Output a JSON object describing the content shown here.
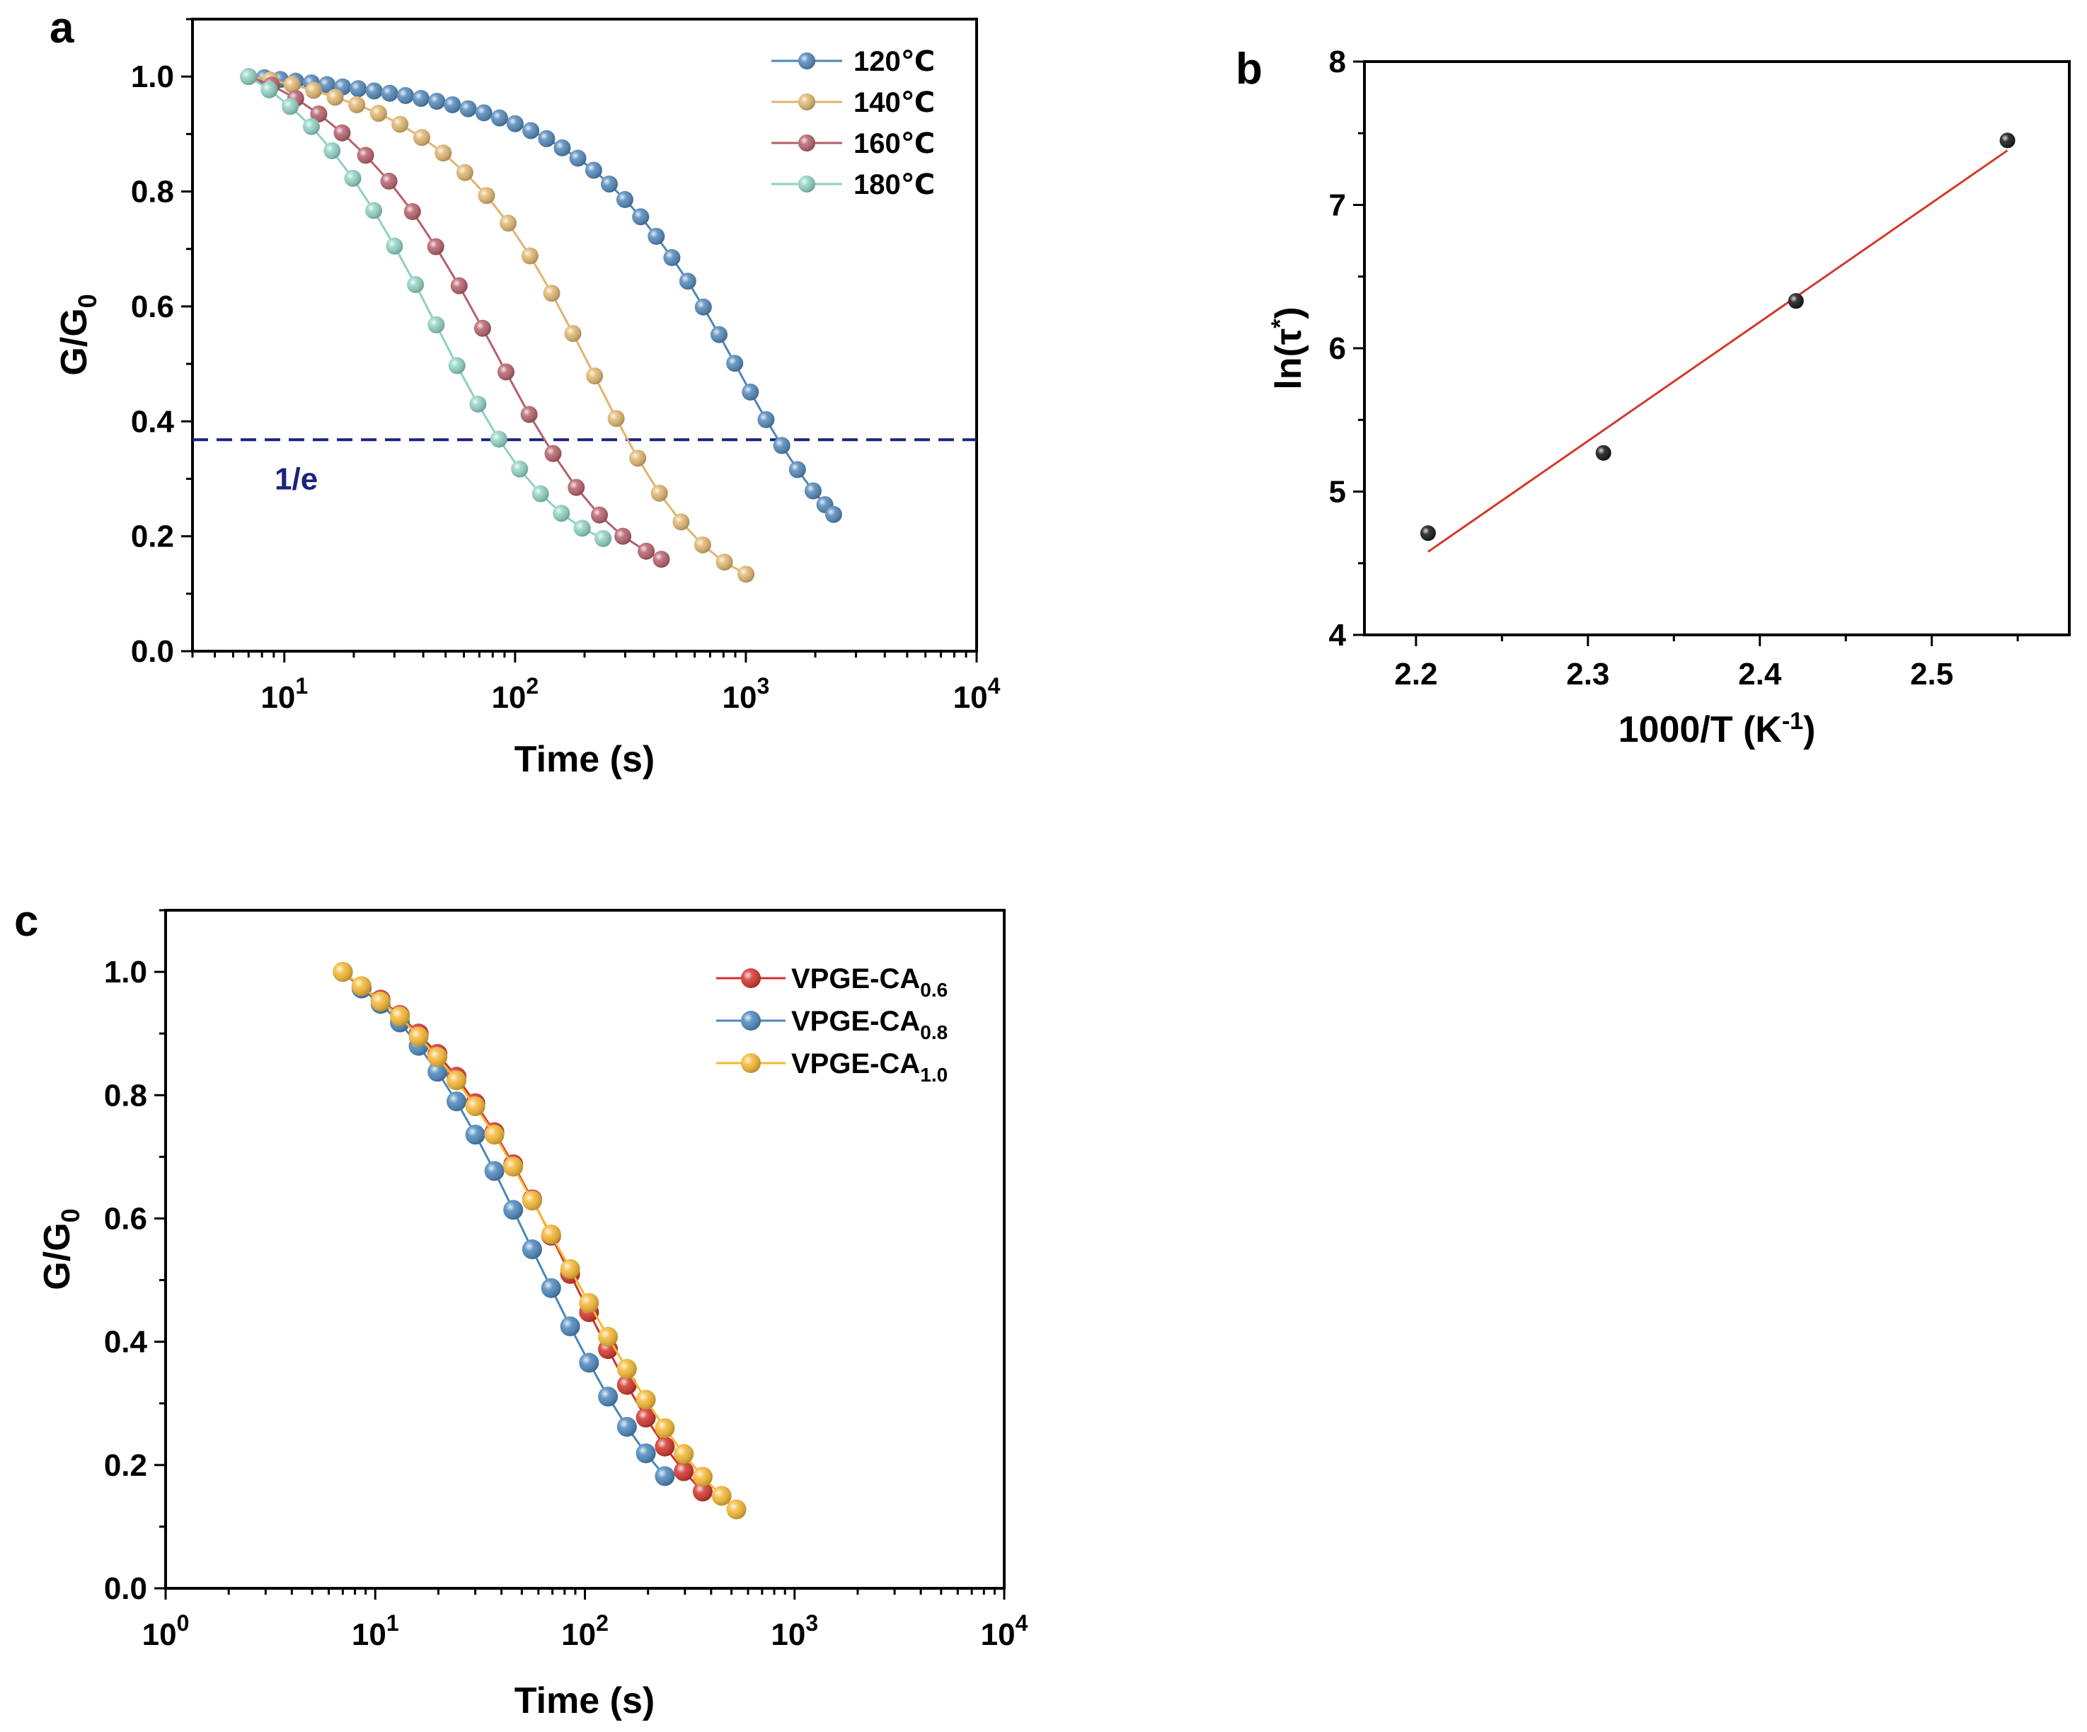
{
  "chart_data": [
    {
      "panel": "a",
      "type": "line",
      "xscale": "log",
      "xlim": [
        4,
        10000
      ],
      "ylim": [
        0,
        1.1
      ],
      "xlabel": "Time (s)",
      "ylabel": "G/G0",
      "x_ticks": [
        "10^1",
        "10^2",
        "10^3",
        "10^4"
      ],
      "y_ticks": [
        "0.0",
        "0.2",
        "0.4",
        "0.6",
        "0.8",
        "1.0"
      ],
      "legend_position": "top-right",
      "annotations": [
        {
          "text": "1/e",
          "y": 0.368,
          "style": "dashed horizontal line"
        }
      ],
      "series": [
        {
          "name": "120℃",
          "color": "#4f86b8",
          "x": [
            7,
            8.2,
            9.6,
            11.2,
            13.1,
            15.3,
            17.9,
            20.9,
            24.5,
            28.6,
            33.5,
            39.1,
            45.8,
            53.5,
            62.6,
            73.2,
            85.6,
            100,
            117,
            137,
            160,
            187,
            219,
            256,
            299,
            350,
            409,
            478,
            560,
            654,
            765,
            895,
            1046,
            1223,
            1431,
            1673,
            1956,
            2200,
            2400
          ],
          "y": [
            1.0,
            0.998,
            0.995,
            0.992,
            0.989,
            0.986,
            0.982,
            0.979,
            0.975,
            0.971,
            0.967,
            0.962,
            0.957,
            0.951,
            0.944,
            0.937,
            0.928,
            0.918,
            0.906,
            0.892,
            0.876,
            0.858,
            0.837,
            0.813,
            0.786,
            0.756,
            0.722,
            0.685,
            0.644,
            0.599,
            0.551,
            0.501,
            0.451,
            0.403,
            0.358,
            0.316,
            0.279,
            0.255,
            0.238
          ]
        },
        {
          "name": "140℃",
          "color": "#dfb56d",
          "x": [
            7,
            8.7,
            10.8,
            13.4,
            16.6,
            20.6,
            25.6,
            31.7,
            39.4,
            48.8,
            60.6,
            75.2,
            93.3,
            116,
            144,
            178,
            221,
            274,
            340,
            422,
            524,
            650,
            807,
            1001
          ],
          "y": [
            1.0,
            0.994,
            0.986,
            0.976,
            0.964,
            0.951,
            0.936,
            0.917,
            0.894,
            0.867,
            0.833,
            0.793,
            0.745,
            0.688,
            0.623,
            0.553,
            0.479,
            0.405,
            0.336,
            0.275,
            0.225,
            0.185,
            0.155,
            0.134
          ]
        },
        {
          "name": "160℃",
          "color": "#b55f69",
          "x": [
            7,
            8.8,
            11.2,
            14.1,
            17.8,
            22.5,
            28.4,
            35.9,
            45.3,
            57.2,
            72.3,
            91.3,
            115,
            146,
            184,
            232,
            293,
            370,
            430
          ],
          "y": [
            1.0,
            0.985,
            0.962,
            0.935,
            0.902,
            0.863,
            0.818,
            0.765,
            0.704,
            0.636,
            0.562,
            0.486,
            0.412,
            0.344,
            0.285,
            0.237,
            0.2,
            0.174,
            0.16
          ]
        },
        {
          "name": "180℃",
          "color": "#8ed1c1",
          "x": [
            7,
            8.6,
            10.6,
            13.1,
            16.1,
            19.8,
            24.4,
            30.0,
            37.0,
            45.5,
            56.0,
            69.0,
            85.0,
            104.6,
            128.8,
            158.6,
            195.3,
            240.5
          ],
          "y": [
            1.0,
            0.977,
            0.948,
            0.913,
            0.871,
            0.823,
            0.767,
            0.705,
            0.638,
            0.568,
            0.497,
            0.43,
            0.369,
            0.317,
            0.274,
            0.24,
            0.214,
            0.196
          ]
        }
      ]
    },
    {
      "panel": "b",
      "type": "scatter",
      "xlim": [
        2.17,
        2.58
      ],
      "ylim": [
        4,
        8
      ],
      "xlabel": "1000/T (K-1)",
      "ylabel": "ln(τ*)",
      "x_ticks": [
        "2.2",
        "2.3",
        "2.4",
        "2.5"
      ],
      "y_ticks": [
        "4",
        "5",
        "6",
        "7",
        "8"
      ],
      "points": {
        "x": [
          2.207,
          2.309,
          2.421,
          2.544
        ],
        "y": [
          4.71,
          5.27,
          6.33,
          7.45
        ]
      },
      "fit_line": {
        "x": [
          2.207,
          2.544
        ],
        "y": [
          4.58,
          7.38
        ],
        "color": "#d23a2a"
      },
      "point_color": "#111111"
    },
    {
      "panel": "c",
      "type": "line",
      "xscale": "log",
      "xlim": [
        1,
        10000
      ],
      "ylim": [
        0,
        1.1
      ],
      "xlabel": "Time (s)",
      "ylabel": "G/G0",
      "x_ticks": [
        "10^0",
        "10^1",
        "10^2",
        "10^3",
        "10^4"
      ],
      "y_ticks": [
        "0.0",
        "0.2",
        "0.4",
        "0.6",
        "0.8",
        "1.0"
      ],
      "legend_position": "top-right",
      "series": [
        {
          "name": "VPGE-CA",
          "sub": "0.6",
          "color": "#d3322a",
          "x": [
            7,
            8.6,
            10.6,
            13.1,
            16.1,
            19.8,
            24.4,
            30.0,
            37.0,
            45.5,
            56.0,
            69.0,
            85.0,
            104.6,
            128.8,
            158.6,
            195.3,
            240.5,
            296.1,
            364.6
          ],
          "y": [
            1.0,
            0.975,
            0.955,
            0.93,
            0.9,
            0.867,
            0.83,
            0.787,
            0.74,
            0.688,
            0.631,
            0.572,
            0.51,
            0.448,
            0.388,
            0.33,
            0.277,
            0.23,
            0.19,
            0.157
          ]
        },
        {
          "name": "VPGE-CA",
          "sub": "0.8",
          "color": "#4a86bd",
          "x": [
            7,
            8.6,
            10.6,
            13.1,
            16.1,
            19.8,
            24.4,
            30.0,
            37.0,
            45.5,
            56.0,
            69.0,
            85.0,
            104.6,
            128.8,
            158.6,
            195.3,
            240.5
          ],
          "y": [
            1.0,
            0.973,
            0.948,
            0.918,
            0.88,
            0.838,
            0.79,
            0.736,
            0.677,
            0.614,
            0.55,
            0.487,
            0.425,
            0.366,
            0.311,
            0.262,
            0.219,
            0.182
          ]
        },
        {
          "name": "VPGE-CA",
          "sub": "1.0",
          "color": "#f5b731",
          "x": [
            7,
            8.6,
            10.6,
            13.1,
            16.1,
            19.8,
            24.4,
            30.0,
            37.0,
            45.5,
            56.0,
            69.0,
            85.0,
            104.6,
            128.8,
            158.6,
            195.3,
            240.5,
            296.1,
            364.6,
            448.9,
            528
          ],
          "y": [
            1.0,
            0.977,
            0.952,
            0.928,
            0.895,
            0.862,
            0.824,
            0.782,
            0.736,
            0.684,
            0.629,
            0.574,
            0.518,
            0.463,
            0.408,
            0.356,
            0.306,
            0.26,
            0.218,
            0.181,
            0.15,
            0.128
          ]
        }
      ]
    }
  ],
  "panels": {
    "a": {
      "label": "a",
      "xlabel": "Time (s)",
      "ylabel_main": "G/G",
      "ylabel_sub": "0",
      "annotation": "1/e"
    },
    "b": {
      "label": "b",
      "xlabel_main": "1000/T (K",
      "xlabel_sup": "-1",
      "xlabel_end": ")",
      "ylabel_main": "ln(τ",
      "ylabel_sup": "*",
      "ylabel_end": ")"
    },
    "c": {
      "label": "c",
      "xlabel": "Time (s)",
      "ylabel_main": "G/G",
      "ylabel_sub": "0"
    }
  }
}
